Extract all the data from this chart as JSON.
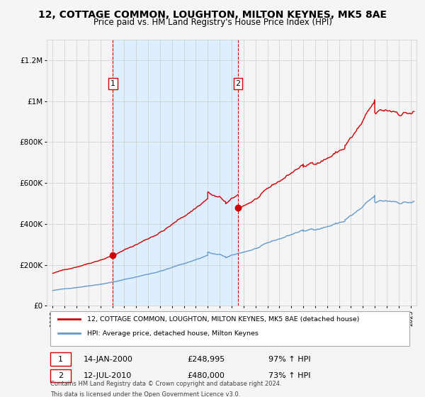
{
  "title": "12, COTTAGE COMMON, LOUGHTON, MILTON KEYNES, MK5 8AE",
  "subtitle": "Price paid vs. HM Land Registry's House Price Index (HPI)",
  "title_fontsize": 10,
  "subtitle_fontsize": 8.5,
  "legend_line1": "12, COTTAGE COMMON, LOUGHTON, MILTON KEYNES, MK5 8AE (detached house)",
  "legend_line2": "HPI: Average price, detached house, Milton Keynes",
  "sale1_date": "14-JAN-2000",
  "sale1_price": "£248,995",
  "sale1_hpi": "97% ↑ HPI",
  "sale2_date": "12-JUL-2010",
  "sale2_price": "£480,000",
  "sale2_hpi": "73% ↑ HPI",
  "footnote1": "Contains HM Land Registry data © Crown copyright and database right 2024.",
  "footnote2": "This data is licensed under the Open Government Licence v3.0.",
  "red_line_color": "#cc0000",
  "blue_line_color": "#6699cc",
  "shaded_color": "#ddeeff",
  "background_color": "#f5f5f5",
  "grid_color": "#cccccc",
  "sale1_x": 2000.04,
  "sale2_x": 2010.54,
  "sale1_price_val": 248995,
  "sale2_price_val": 480000,
  "ylim_max": 1300000,
  "xlim_min": 1994.5,
  "xlim_max": 2025.5
}
